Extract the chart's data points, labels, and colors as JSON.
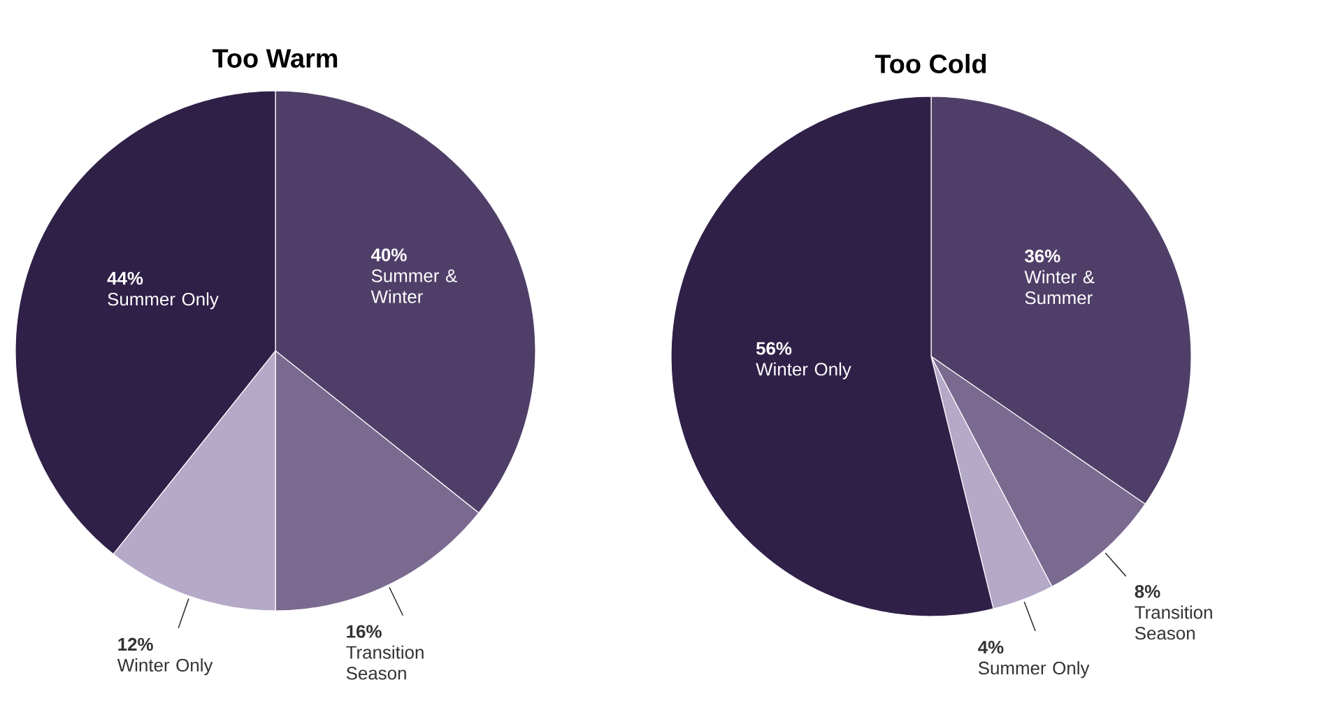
{
  "chart_data": [
    {
      "type": "pie",
      "title": "Too Warm",
      "categories": [
        "Summer & Winter",
        "Transition Season",
        "Winter Only",
        "Summer Only"
      ],
      "values": [
        40,
        16,
        12,
        44
      ],
      "value_labels": [
        "40%",
        "16%",
        "12%",
        "44%"
      ],
      "colors": [
        "#4f3f68",
        "#7a6a90",
        "#b5a9c8",
        "#2f2048"
      ]
    },
    {
      "type": "pie",
      "title": "Too Cold",
      "categories": [
        "Winter & Summer",
        "Transition Season",
        "Summer Only",
        "Winter Only"
      ],
      "values": [
        36,
        8,
        4,
        56
      ],
      "value_labels": [
        "36%",
        "8%",
        "4%",
        "56%"
      ],
      "colors": [
        "#4f3f68",
        "#7a6a90",
        "#b5a9c8",
        "#2f2048"
      ]
    }
  ]
}
